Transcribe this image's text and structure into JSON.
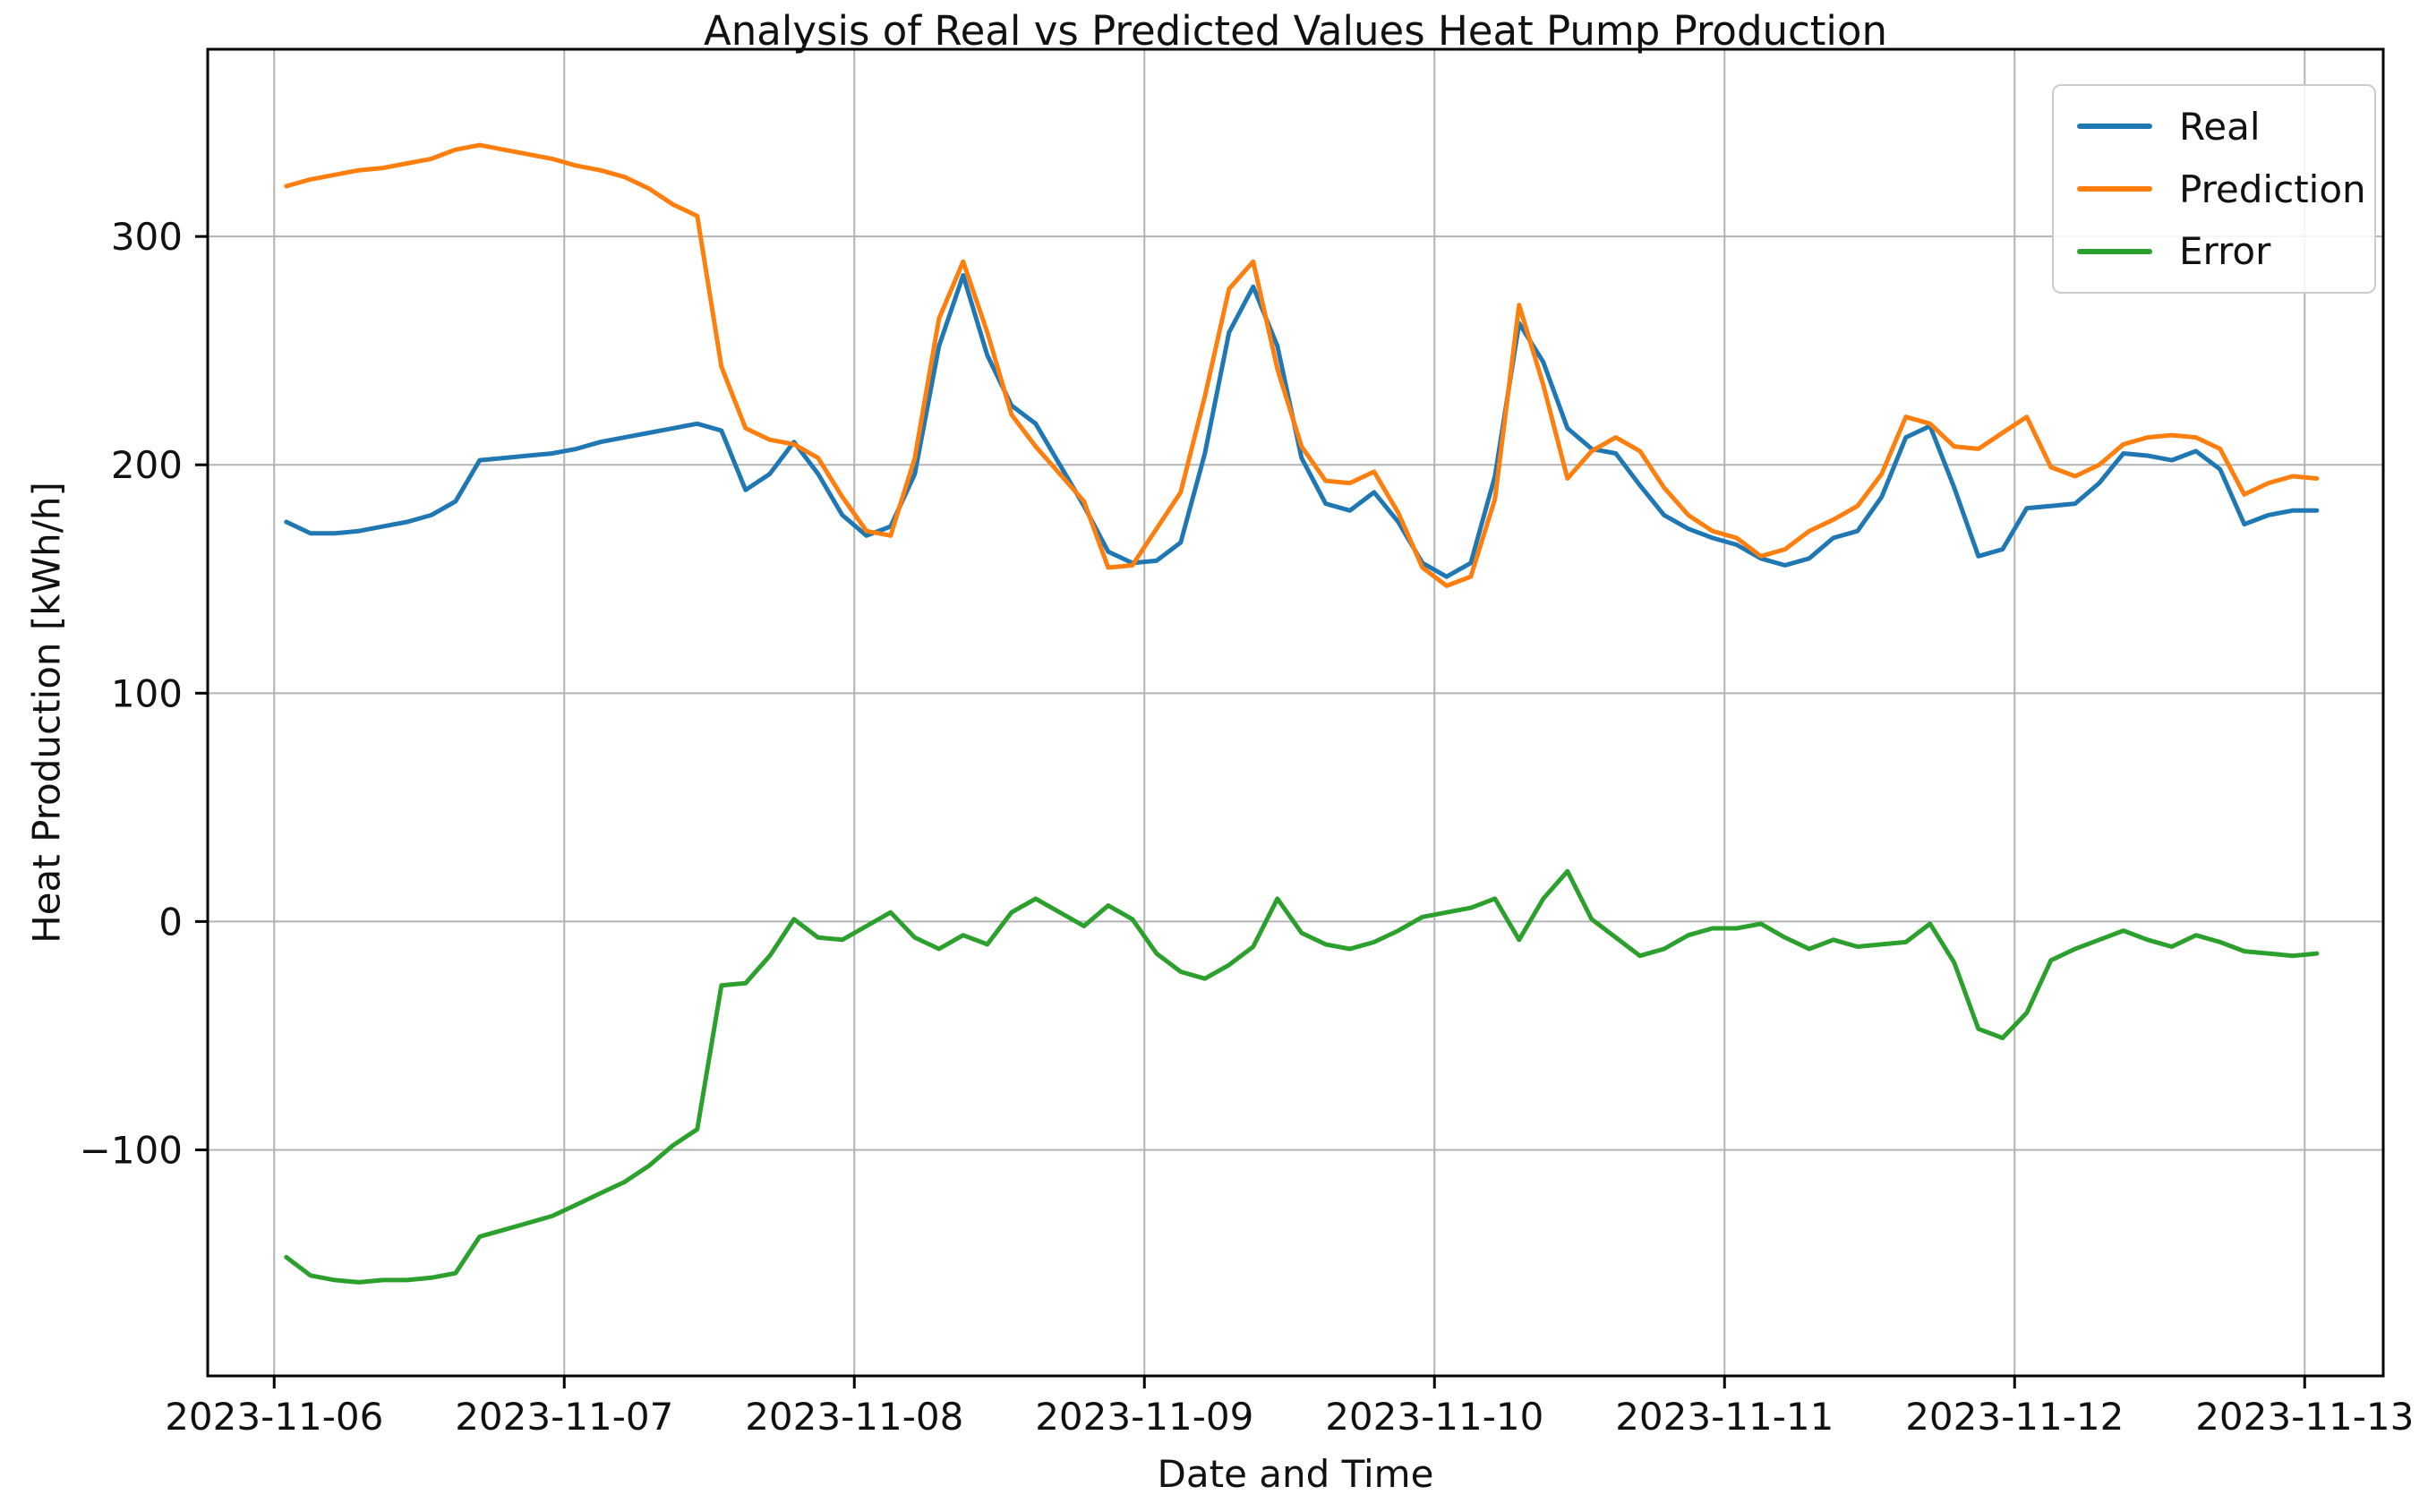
{
  "chart_data": {
    "type": "line",
    "title": "Analysis of Real vs Predicted Values Heat Pump Production",
    "xlabel": "Date and Time",
    "ylabel": "Heat Production [kWh/h]",
    "grid": true,
    "legend_position": "upper right",
    "colors": {
      "real": "#1f77b4",
      "prediction": "#ff7f0e",
      "error": "#2ca02c",
      "grid": "#b3b3b3",
      "spine": "#000000"
    },
    "axis": {
      "x_range_hours": [
        -6.5,
        173.5
      ],
      "y_range": [
        -199,
        382
      ],
      "x_ticks": [
        {
          "hour": -1,
          "label": "2023-11-06"
        },
        {
          "hour": 23,
          "label": "2023-11-07"
        },
        {
          "hour": 47,
          "label": "2023-11-08"
        },
        {
          "hour": 71,
          "label": "2023-11-09"
        },
        {
          "hour": 95,
          "label": "2023-11-10"
        },
        {
          "hour": 119,
          "label": "2023-11-11"
        },
        {
          "hour": 143,
          "label": "2023-11-12"
        },
        {
          "hour": 167,
          "label": "2023-11-13"
        }
      ],
      "y_ticks": [
        {
          "value": -100,
          "label": "−100"
        },
        {
          "value": 0,
          "label": "0"
        },
        {
          "value": 100,
          "label": "100"
        },
        {
          "value": 200,
          "label": "200"
        },
        {
          "value": 300,
          "label": "300"
        }
      ]
    },
    "sampling": {
      "hour_zero": "2023-11-06 01:00",
      "start_hour": 0,
      "step_hours": 2
    },
    "series": [
      {
        "name": "Real",
        "color": "#1f77b4",
        "values": [
          175,
          170,
          170,
          171,
          173,
          175,
          178,
          184,
          202,
          203,
          204,
          205,
          207,
          210,
          212,
          214,
          216,
          218,
          215,
          189,
          196,
          210,
          196,
          178,
          169,
          173,
          196,
          252,
          283,
          248,
          226,
          218,
          200,
          182,
          162,
          157,
          158,
          166,
          205,
          258,
          278,
          252,
          203,
          183,
          180,
          188,
          175,
          157,
          151,
          157,
          195,
          262,
          245,
          216,
          207,
          205,
          191,
          178,
          172,
          168,
          165,
          159,
          156,
          159,
          168,
          171,
          186,
          212,
          217,
          190,
          160,
          163,
          181,
          182,
          183,
          192,
          205,
          204,
          202,
          206,
          198,
          174,
          178,
          180,
          180
        ]
      },
      {
        "name": "Prediction",
        "color": "#ff7f0e",
        "values": [
          322,
          325,
          327,
          329,
          330,
          332,
          334,
          338,
          340,
          338,
          336,
          334,
          331,
          329,
          326,
          321,
          314,
          309,
          243,
          216,
          211,
          209,
          203,
          186,
          171,
          169,
          203,
          264,
          289,
          258,
          222,
          208,
          196,
          184,
          155,
          156,
          172,
          188,
          230,
          277,
          289,
          242,
          208,
          193,
          192,
          197,
          179,
          155,
          147,
          151,
          185,
          270,
          235,
          194,
          206,
          212,
          206,
          190,
          178,
          171,
          168,
          160,
          163,
          171,
          176,
          182,
          196,
          221,
          218,
          208,
          207,
          214,
          221,
          199,
          195,
          200,
          209,
          212,
          213,
          212,
          207,
          187,
          192,
          195,
          194
        ]
      },
      {
        "name": "Error",
        "color": "#2ca02c",
        "values": [
          -147,
          -155,
          -157,
          -158,
          -157,
          -157,
          -156,
          -154,
          -138,
          -135,
          -132,
          -129,
          -124,
          -119,
          -114,
          -107,
          -98,
          -91,
          -28,
          -27,
          -15,
          1,
          -7,
          -8,
          -2,
          4,
          -7,
          -12,
          -6,
          -10,
          4,
          10,
          4,
          -2,
          7,
          1,
          -14,
          -22,
          -25,
          -19,
          -11,
          10,
          -5,
          -10,
          -12,
          -9,
          -4,
          2,
          4,
          6,
          10,
          -8,
          10,
          22,
          1,
          -7,
          -15,
          -12,
          -6,
          -3,
          -3,
          -1,
          -7,
          -12,
          -8,
          -11,
          -10,
          -9,
          -1,
          -18,
          -47,
          -51,
          -40,
          -17,
          -12,
          -8,
          -4,
          -8,
          -11,
          -6,
          -9,
          -13,
          -14,
          -15,
          -14
        ]
      }
    ]
  }
}
